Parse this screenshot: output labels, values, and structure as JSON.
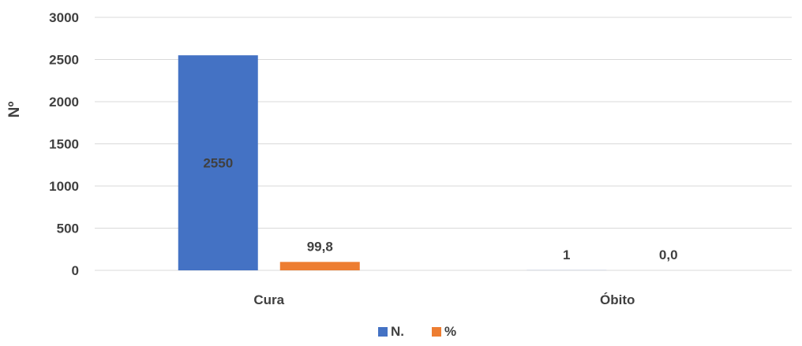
{
  "chart_data": {
    "type": "bar",
    "title": "",
    "xlabel": "",
    "ylabel": "Nº",
    "ylim": [
      0,
      3000
    ],
    "yticks": [
      0,
      500,
      1000,
      1500,
      2000,
      2500,
      3000
    ],
    "categories": [
      "Cura",
      "Óbito"
    ],
    "series": [
      {
        "name": "N.",
        "values": [
          2550,
          1
        ],
        "labels": [
          "2550",
          "1"
        ],
        "color": "#4472C4"
      },
      {
        "name": "%",
        "values": [
          99.8,
          0.0
        ],
        "labels": [
          "99,8",
          "0,0"
        ],
        "color": "#ED7D31"
      }
    ],
    "grid": true,
    "legend": "bottom"
  }
}
